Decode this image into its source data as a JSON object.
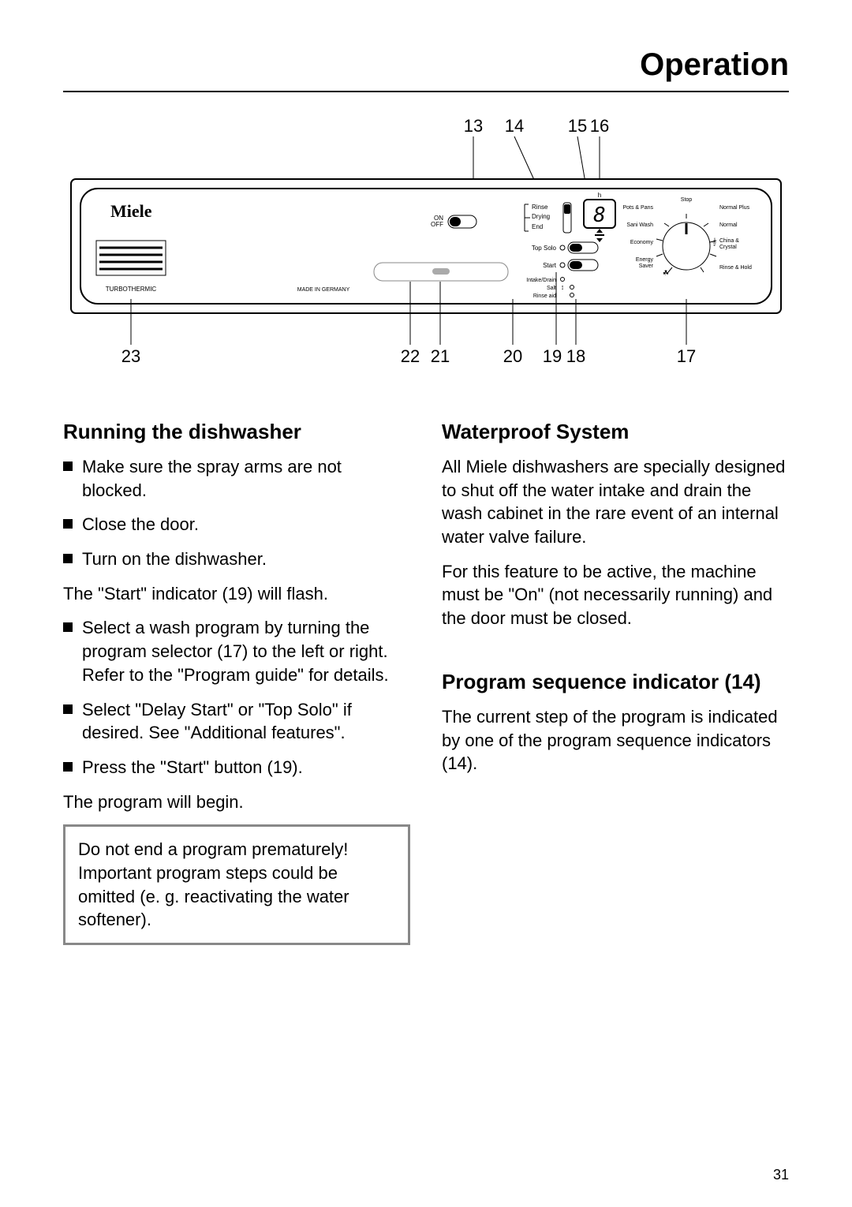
{
  "page": {
    "title": "Operation",
    "page_number": "31"
  },
  "diagram": {
    "top_callouts": [
      "13",
      "14",
      "15",
      "16"
    ],
    "bottom_callouts": [
      "23",
      "22",
      "21",
      "20",
      "19",
      "18",
      "17"
    ],
    "panel": {
      "brand": "Miele",
      "subbrand": "TURBOTHERMIC",
      "made_in": "MADE IN GERMANY",
      "on_off": "ON\nOFF",
      "display_value": "8",
      "delay_label": "h",
      "sequence_labels": [
        "Rinse",
        "Drying",
        "End"
      ],
      "top_solo": "Top Solo",
      "start": "Start",
      "status_labels": [
        "Intake/Drain",
        "Salt",
        "Rinse aid"
      ],
      "dial_left": [
        "Pots & Pans",
        "Sani Wash",
        "Economy",
        "Energy\nSaver"
      ],
      "dial_right": [
        "Stop",
        "Normal Plus",
        "Normal",
        "China &\nCrystal",
        "Rinse & Hold"
      ]
    },
    "style": {
      "outer_border_color": "#000000",
      "outer_border_width": 2,
      "inner_border_radius": 22,
      "callout_fontsize": 22,
      "tiny_fontsize": 8,
      "small_fontsize": 10,
      "brand_fontsize": 22,
      "display_fontsize": 28,
      "line_color": "#000000"
    }
  },
  "left": {
    "heading": "Running the dishwasher",
    "items": [
      {
        "type": "bullet",
        "text": "Make sure the spray arms are not blocked."
      },
      {
        "type": "bullet",
        "text": "Close the door."
      },
      {
        "type": "bullet",
        "text": "Turn on the dishwasher."
      },
      {
        "type": "plain",
        "text": "The \"Start\" indicator (19) will flash."
      },
      {
        "type": "bullet",
        "text": "Select a wash program by turning the program selector (17) to the left or right. Refer to the \"Program guide\" for details."
      },
      {
        "type": "bullet",
        "text": "Select \"Delay Start\" or \"Top Solo\" if desired. See \"Additional features\"."
      },
      {
        "type": "bullet",
        "text": "Press the \"Start\" button (19)."
      },
      {
        "type": "plain",
        "text": "The program will begin."
      }
    ],
    "callout": "Do not end a program prematurely! Important program steps could be omitted (e. g. reactivating the water softener)."
  },
  "right": {
    "sections": [
      {
        "heading": "Waterproof System",
        "paras": [
          "All Miele dishwashers are specially designed to shut off the water intake and drain the wash cabinet in the rare event of an internal water valve failure.",
          "For this feature to be active, the machine must be \"On\" (not necessarily running) and the door must be closed."
        ]
      },
      {
        "heading": "Program sequence indicator (14)",
        "paras": [
          "The current step of the program is indicated by one of the program sequence indicators (14)."
        ]
      }
    ]
  }
}
